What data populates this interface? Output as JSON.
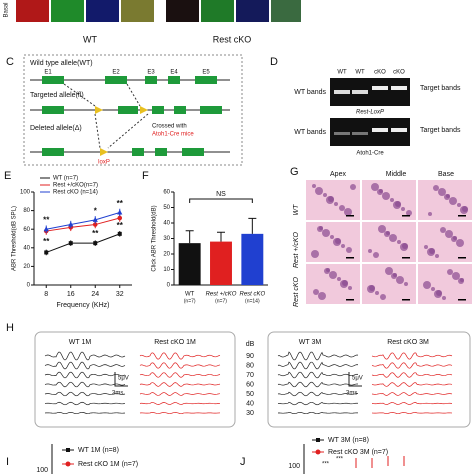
{
  "figure": {
    "panel_labels": [
      "C",
      "D",
      "E",
      "F",
      "G",
      "H",
      "I",
      "J"
    ],
    "top": {
      "row_label": "Basal",
      "groups": [
        "WT",
        "Rest cKO"
      ]
    },
    "C": {
      "alleles": [
        "Wild type allele(WT)",
        "Targeted allele(fl)",
        "Deleted allele(Δ)"
      ],
      "exons": [
        "E1",
        "E2",
        "E3",
        "E4",
        "E5"
      ],
      "loxp": "loxP",
      "cross_text": "Crossed with",
      "cross_mouse": "Atoh1-Cre mice"
    },
    "D": {
      "lanes": [
        "WT",
        "WT",
        "cKO",
        "cKO"
      ],
      "left_label": "WT bands",
      "right_label": "Target bands",
      "gels": [
        "Rest-LoxP",
        "Atoh1-Cre"
      ]
    },
    "G": {
      "columns": [
        "Apex",
        "Middle",
        "Base"
      ],
      "rows": [
        "WT",
        "Rest +/cKO",
        "Rest cKO"
      ]
    },
    "H": {
      "groups": [
        "WT 1M",
        "Rest cKO 1M",
        "WT 3M",
        "Rest cKO 3M"
      ],
      "db_unit": "dB",
      "db_levels": [
        "90",
        "80",
        "70",
        "60",
        "50",
        "40",
        "30"
      ],
      "scale_v": "5μV",
      "scale_t": "3ms"
    },
    "I": {
      "legend": [
        "WT 1M (n=8)",
        "Rest cKO 1M (n=7)"
      ],
      "ytick": "100"
    },
    "J": {
      "legend": [
        "WT 3M (n=8)",
        "Rest cKO 3M (n=7)"
      ],
      "ytick": "100",
      "annotations": [
        "***",
        "***"
      ]
    }
  },
  "chart_data": [
    {
      "type": "line",
      "ylabel": "ABR Threshold(dB SPL)",
      "xlabel": "Frequency (KHz)",
      "x": [
        8,
        16,
        24,
        32
      ],
      "xlim": [
        4,
        36
      ],
      "xticks": [
        8,
        16,
        24,
        32
      ],
      "ylim": [
        0,
        100
      ],
      "yticks": [
        0,
        20,
        40,
        60,
        80,
        100
      ],
      "series": [
        {
          "name": "WT (n=7)",
          "color": "#111111",
          "values": [
            35,
            45,
            45,
            55
          ],
          "errors": [
            3,
            3,
            3,
            3
          ]
        },
        {
          "name": "Rest +/cKO(n=7)",
          "color": "#e02020",
          "values": [
            58,
            62,
            65,
            72
          ],
          "errors": [
            4,
            4,
            4,
            4
          ]
        },
        {
          "name": "Rest cKO (n=14)",
          "color": "#2040d0",
          "values": [
            60,
            65,
            70,
            78
          ],
          "errors": [
            4,
            4,
            4,
            4
          ]
        }
      ],
      "significance_upper": [
        "**",
        null,
        "*",
        "**"
      ],
      "significance_lower": [
        "**",
        null,
        "**",
        "**"
      ]
    },
    {
      "type": "bar",
      "ylabel": "Click ABR Threshold(dB)",
      "categories": [
        "WT",
        "Rest +/cKO",
        "Rest cKO"
      ],
      "sublabels": [
        "(n=7)",
        "(n=7)",
        "(n=14)"
      ],
      "values": [
        27,
        28,
        33
      ],
      "errors": [
        8,
        6,
        10
      ],
      "colors": [
        "#111111",
        "#e02020",
        "#2040d0"
      ],
      "ylim": [
        0,
        60
      ],
      "yticks": [
        0,
        10,
        20,
        30,
        40,
        50,
        60
      ],
      "annotation": "NS"
    }
  ]
}
